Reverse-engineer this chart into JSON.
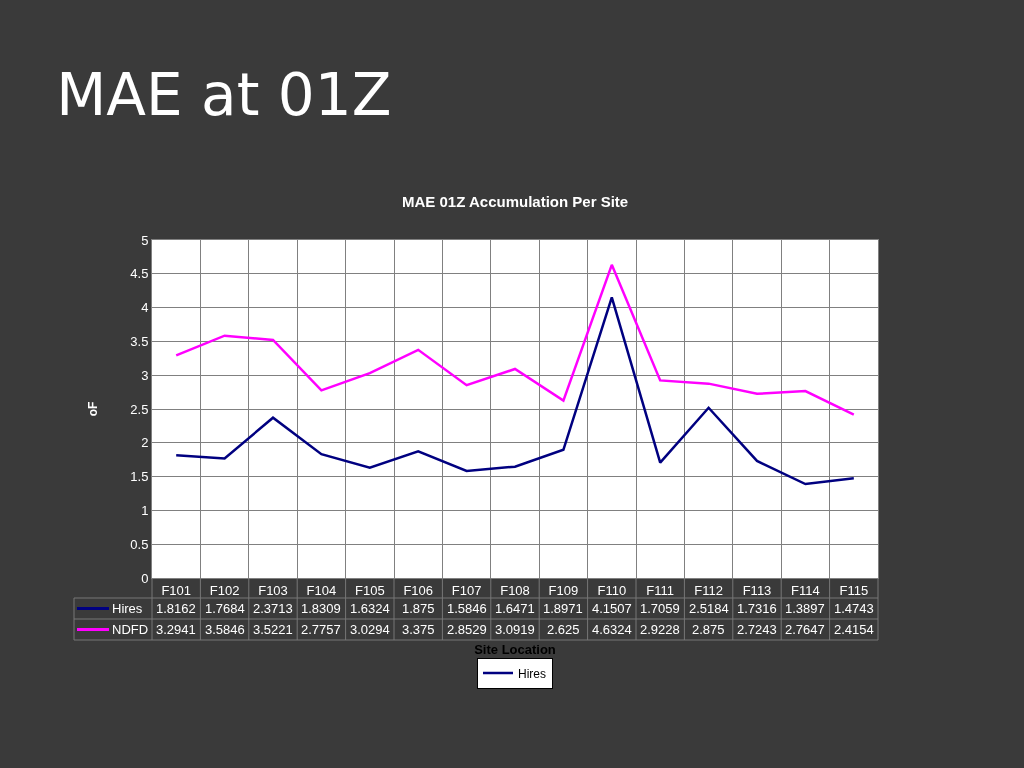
{
  "chart_data": {
    "type": "line",
    "title": "MAE at 01Z",
    "subtitle": "MAE 01Z Accumulation Per Site",
    "xlabel": "Site Location",
    "ylabel": "oF",
    "categories": [
      "F101",
      "F102",
      "F103",
      "F104",
      "F105",
      "F106",
      "F107",
      "F108",
      "F109",
      "F110",
      "F111",
      "F112",
      "F113",
      "F114",
      "F115"
    ],
    "series": [
      {
        "name": "Hires",
        "color": "#000080",
        "values": [
          1.8162,
          1.7684,
          2.3713,
          1.8309,
          1.6324,
          1.875,
          1.5846,
          1.6471,
          1.8971,
          4.1507,
          1.7059,
          2.5184,
          1.7316,
          1.3897,
          1.4743
        ]
      },
      {
        "name": "NDFD",
        "color": "#ff00ff",
        "values": [
          3.2941,
          3.5846,
          3.5221,
          2.7757,
          3.0294,
          3.375,
          2.8529,
          3.0919,
          2.625,
          4.6324,
          2.9228,
          2.875,
          2.7243,
          2.7647,
          2.4154
        ]
      }
    ],
    "ylim": [
      0,
      5
    ],
    "yticks": [
      0,
      0.5,
      1,
      1.5,
      2,
      2.5,
      3,
      3.5,
      4,
      4.5,
      5
    ],
    "grid": true,
    "legend": "bottom",
    "data_labels": true,
    "marker": "none",
    "line_style": "solid"
  }
}
